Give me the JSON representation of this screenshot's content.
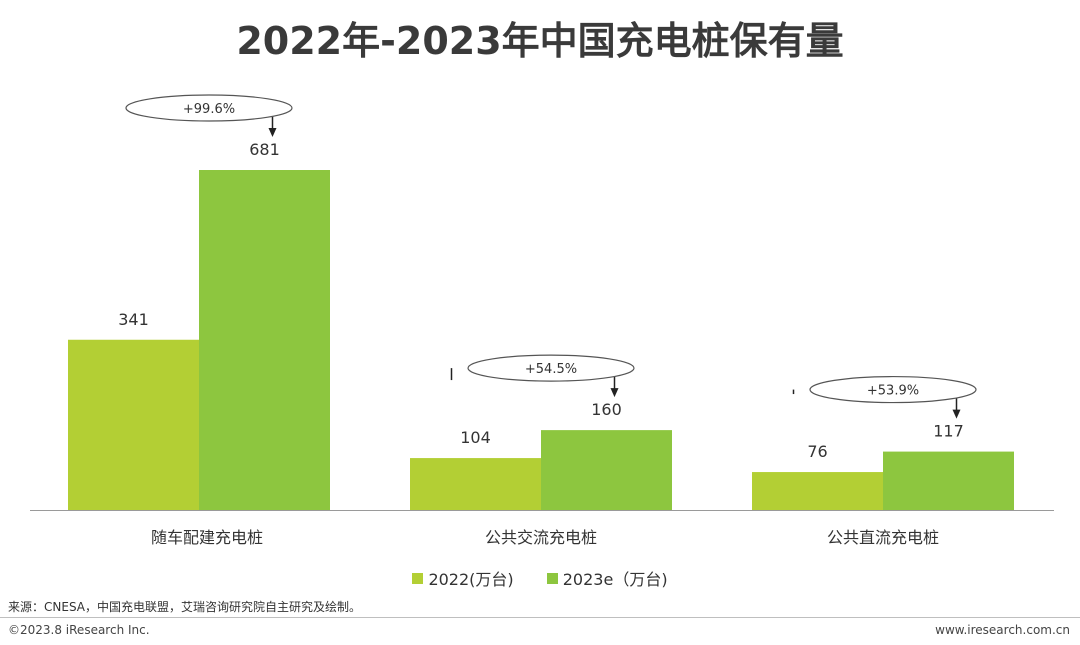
{
  "title": "2022年-2023年中国充电桩保有量",
  "chart_data": {
    "type": "bar",
    "title": "2022年-2023年中国充电桩保有量",
    "categories": [
      "随车配建充电桩",
      "公共交流充电桩",
      "公共直流充电桩"
    ],
    "series": [
      {
        "name": "2022(万台)",
        "values": [
          341,
          104,
          76
        ],
        "color": "#b3cf34"
      },
      {
        "name": "2023e（万台)",
        "values": [
          681,
          160,
          117
        ],
        "color": "#8dc63f"
      }
    ],
    "growth_labels": [
      "+99.6%",
      "+54.5%",
      "+53.9%"
    ],
    "ylim": [
      0,
      681
    ],
    "xlabel": "",
    "ylabel": "",
    "grid": false,
    "legend_position": "bottom"
  },
  "legend": [
    "2022(万台)",
    "2023e（万台)"
  ],
  "source": "来源：CNESA，中国充电联盟，艾瑞咨询研究院自主研究及绘制。",
  "copyright": "©2023.8 iResearch Inc.",
  "website": "www.iresearch.com.cn"
}
